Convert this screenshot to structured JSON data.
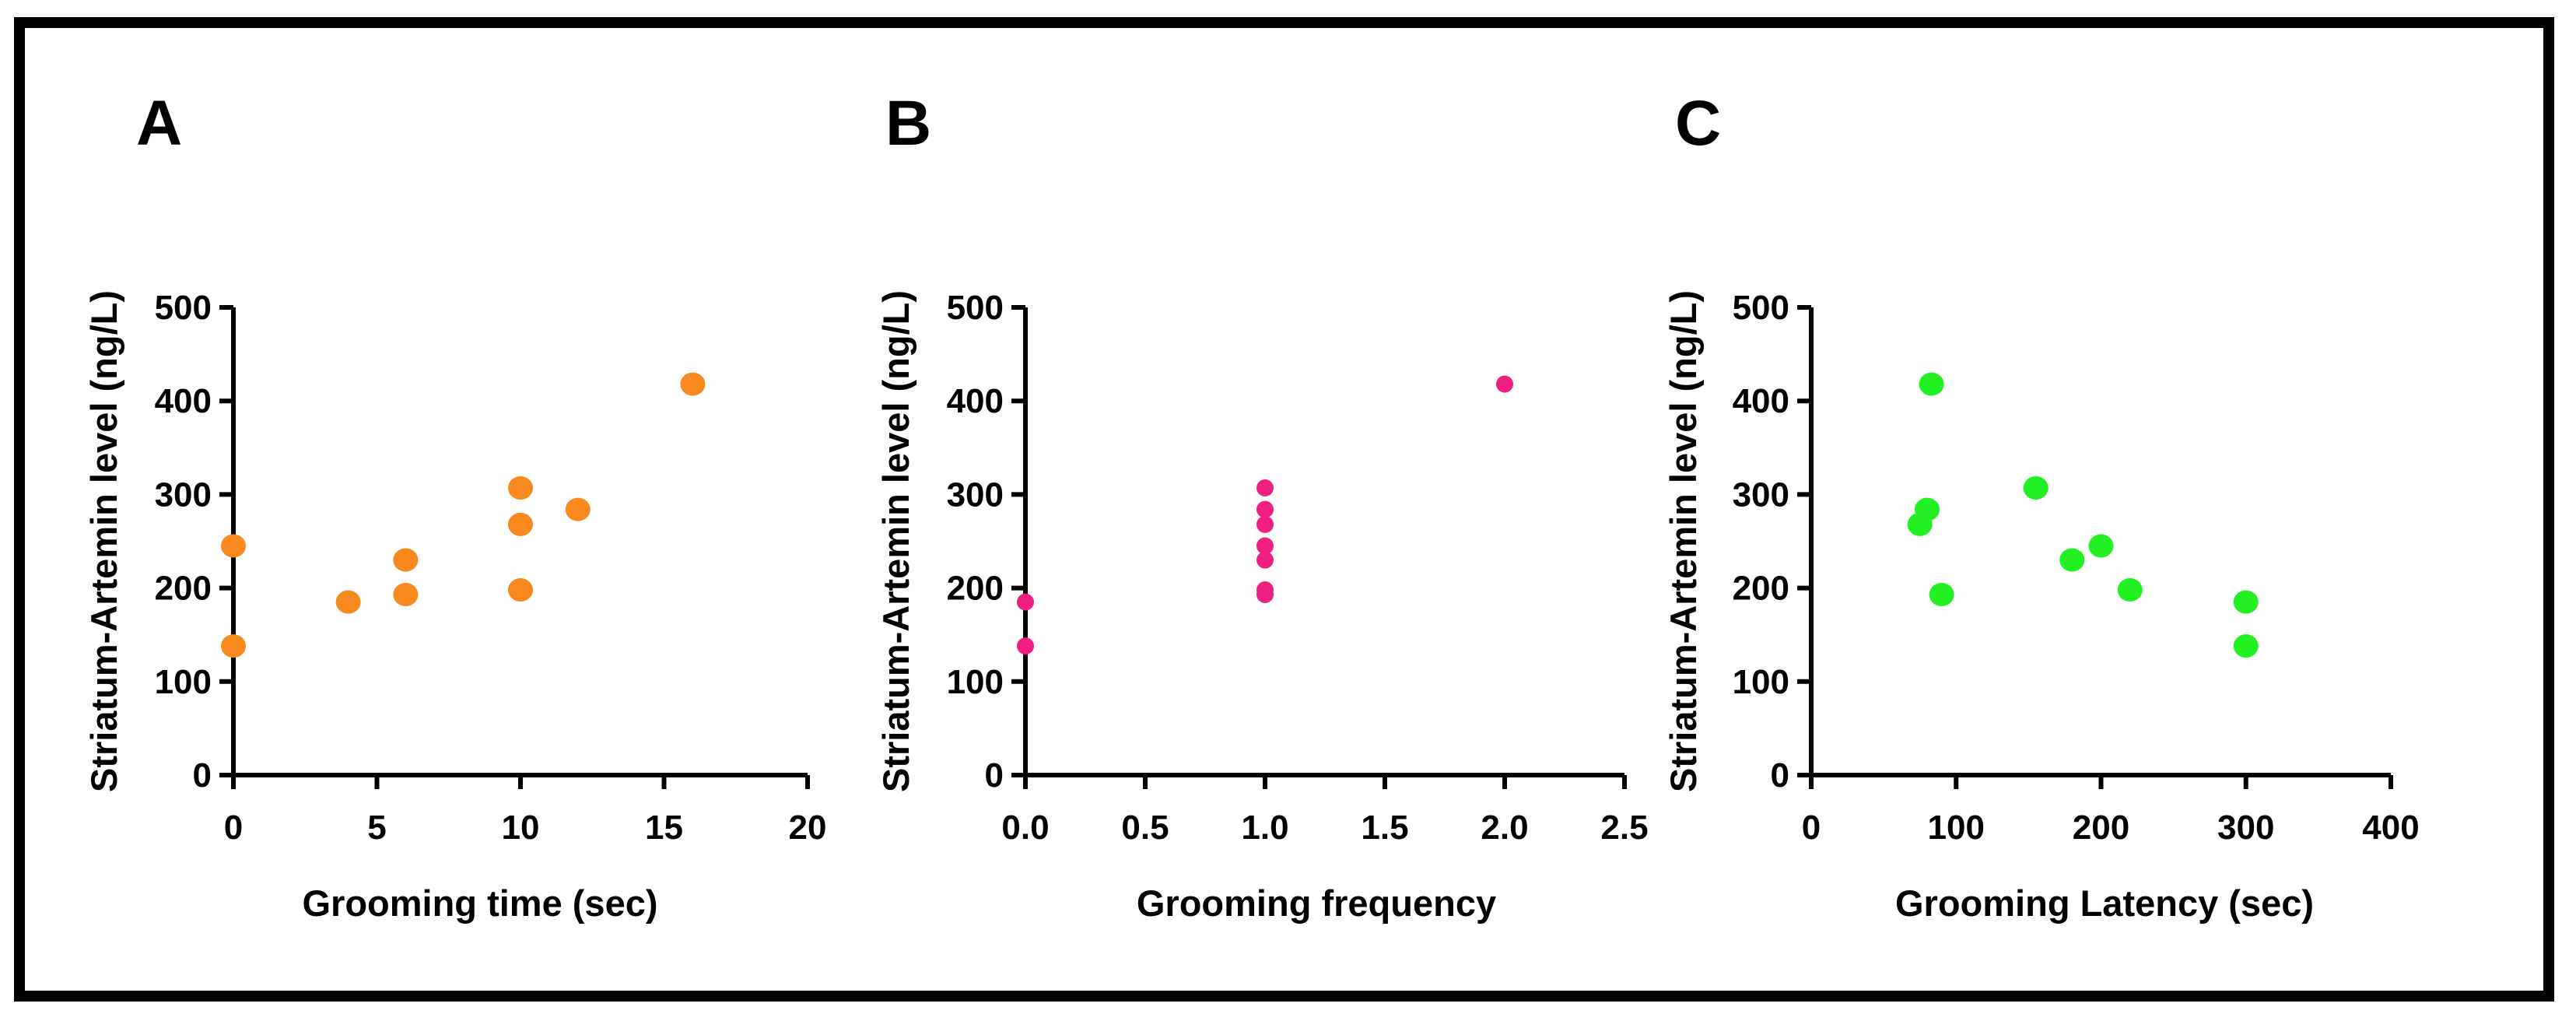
{
  "chart_data": [
    {
      "type": "scatter",
      "panel_label": "A",
      "xlabel": "Grooming time (sec)",
      "ylabel": "Striatum-Artemin level (ng/L)",
      "xlim": [
        0,
        20
      ],
      "ylim": [
        0,
        500
      ],
      "xticks": [
        0,
        5,
        10,
        15,
        20
      ],
      "xtick_labels": [
        "0",
        "5",
        "10",
        "15",
        "20"
      ],
      "yticks": [
        0,
        100,
        200,
        300,
        400,
        500
      ],
      "ytick_labels": [
        "0",
        "100",
        "200",
        "300",
        "400",
        "500"
      ],
      "color": "#f7891e",
      "marker": "large",
      "points": [
        {
          "x": 0,
          "y": 245
        },
        {
          "x": 0,
          "y": 138
        },
        {
          "x": 4,
          "y": 185
        },
        {
          "x": 6,
          "y": 230
        },
        {
          "x": 6,
          "y": 193
        },
        {
          "x": 10,
          "y": 307
        },
        {
          "x": 10,
          "y": 268
        },
        {
          "x": 10,
          "y": 198
        },
        {
          "x": 12,
          "y": 284
        },
        {
          "x": 16,
          "y": 418
        }
      ]
    },
    {
      "type": "scatter",
      "panel_label": "B",
      "xlabel": "Grooming frequency",
      "ylabel": "Striatum-Artemin level (ng/L)",
      "xlim": [
        0,
        2.5
      ],
      "ylim": [
        0,
        500
      ],
      "xticks": [
        0,
        0.5,
        1,
        1.5,
        2,
        2.5
      ],
      "xtick_labels": [
        "0.0",
        "0.5",
        "1.0",
        "1.5",
        "2.0",
        "2.5"
      ],
      "yticks": [
        0,
        100,
        200,
        300,
        400,
        500
      ],
      "ytick_labels": [
        "0",
        "100",
        "200",
        "300",
        "400",
        "500"
      ],
      "color": "#ee1f80",
      "marker": "small",
      "points": [
        {
          "x": 0,
          "y": 185
        },
        {
          "x": 0,
          "y": 138
        },
        {
          "x": 1,
          "y": 307
        },
        {
          "x": 1,
          "y": 284
        },
        {
          "x": 1,
          "y": 268
        },
        {
          "x": 1,
          "y": 245
        },
        {
          "x": 1,
          "y": 230
        },
        {
          "x": 1,
          "y": 198
        },
        {
          "x": 1,
          "y": 193
        },
        {
          "x": 2,
          "y": 418
        }
      ]
    },
    {
      "type": "scatter",
      "panel_label": "C",
      "xlabel": "Grooming Latency (sec)",
      "ylabel": "Striatum-Artemin level (ng/L)",
      "xlim": [
        0,
        400
      ],
      "ylim": [
        0,
        500
      ],
      "xticks": [
        0,
        100,
        200,
        300,
        400
      ],
      "xtick_labels": [
        "0",
        "100",
        "200",
        "300",
        "400"
      ],
      "yticks": [
        0,
        100,
        200,
        300,
        400,
        500
      ],
      "ytick_labels": [
        "0",
        "100",
        "200",
        "300",
        "400",
        "500"
      ],
      "color": "#22f022",
      "marker": "large",
      "points": [
        {
          "x": 83,
          "y": 418
        },
        {
          "x": 80,
          "y": 284
        },
        {
          "x": 75,
          "y": 268
        },
        {
          "x": 90,
          "y": 193
        },
        {
          "x": 155,
          "y": 307
        },
        {
          "x": 200,
          "y": 245
        },
        {
          "x": 180,
          "y": 230
        },
        {
          "x": 220,
          "y": 198
        },
        {
          "x": 300,
          "y": 185
        },
        {
          "x": 300,
          "y": 138
        }
      ]
    }
  ]
}
